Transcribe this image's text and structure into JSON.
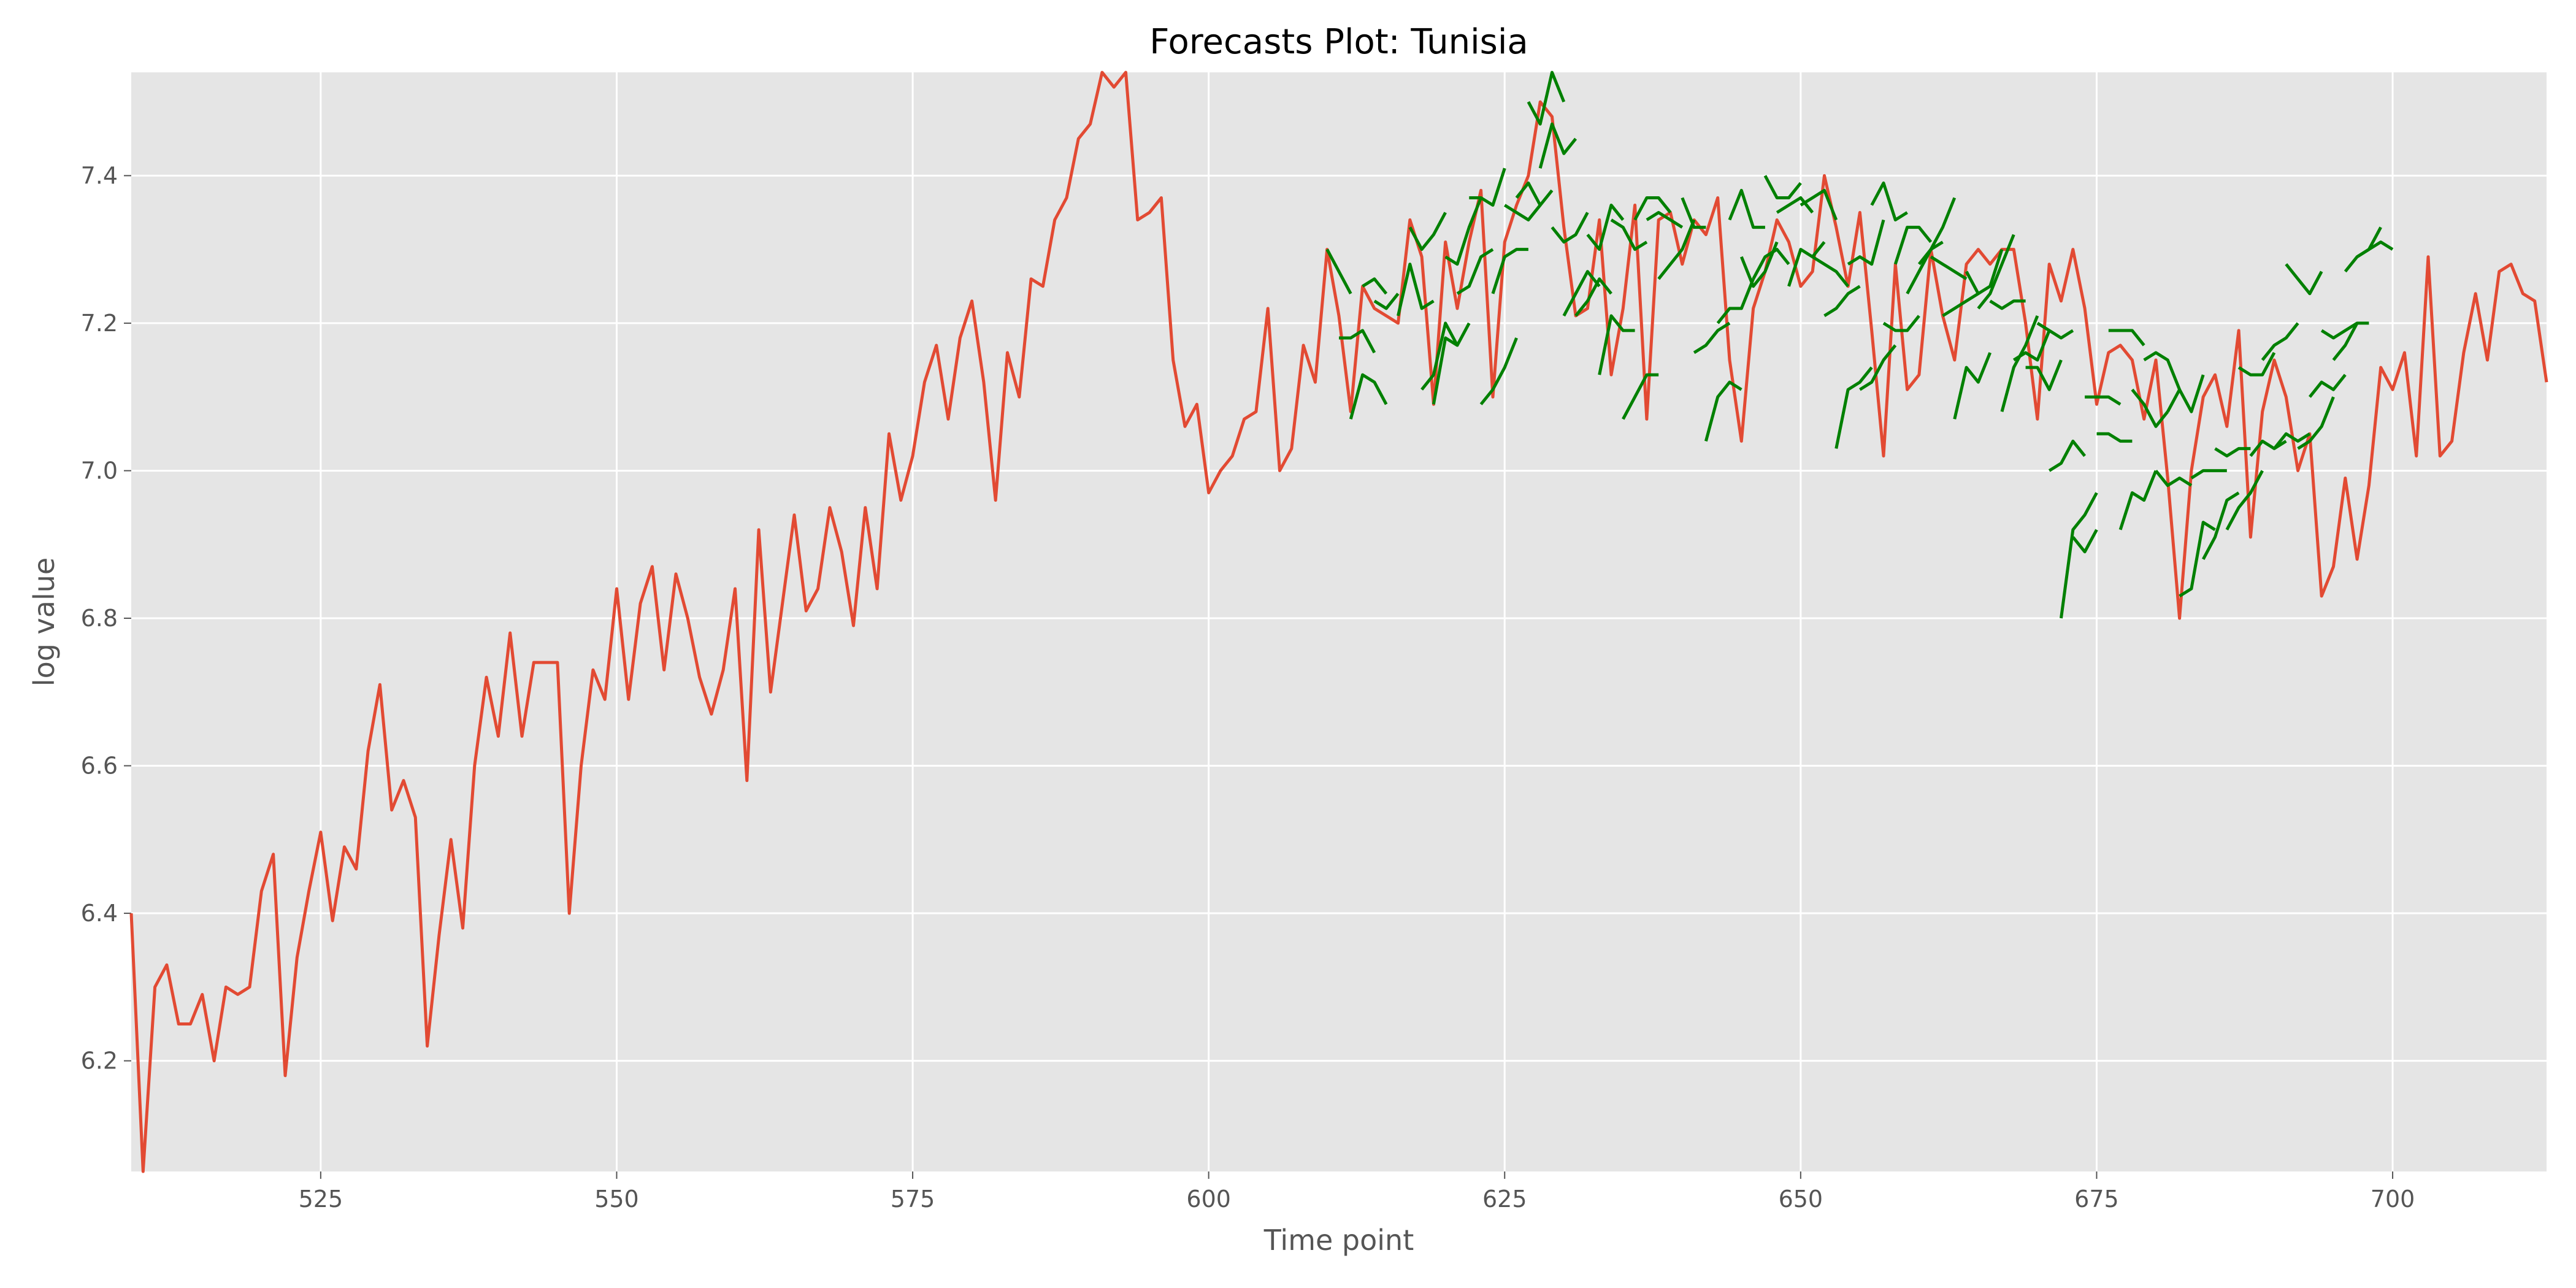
{
  "chart_data": {
    "type": "line",
    "title": "Forecasts Plot: Tunisia",
    "xlabel": "Time point",
    "ylabel": "log value",
    "xlim": [
      509,
      713
    ],
    "ylim": [
      6.05,
      7.54
    ],
    "xticks": [
      525,
      550,
      575,
      600,
      625,
      650,
      675,
      700
    ],
    "yticks": [
      6.2,
      6.4,
      6.6,
      6.8,
      7.0,
      7.2,
      7.4
    ],
    "grid": true,
    "legend": "none",
    "colors": {
      "actual": "#e24a33",
      "forecast": "#008000",
      "panel": "#e5e5e5",
      "grid": "#ffffff"
    },
    "actual": {
      "x_start": 509,
      "values": [
        6.4,
        6.05,
        6.3,
        6.33,
        6.25,
        6.25,
        6.29,
        6.2,
        6.3,
        6.29,
        6.3,
        6.43,
        6.48,
        6.18,
        6.34,
        6.43,
        6.51,
        6.39,
        6.49,
        6.46,
        6.62,
        6.71,
        6.54,
        6.58,
        6.53,
        6.22,
        6.37,
        6.5,
        6.38,
        6.6,
        6.72,
        6.64,
        6.78,
        6.64,
        6.74,
        6.74,
        6.74,
        6.4,
        6.6,
        6.73,
        6.69,
        6.84,
        6.69,
        6.82,
        6.87,
        6.73,
        6.86,
        6.8,
        6.72,
        6.67,
        6.73,
        6.84,
        6.58,
        6.92,
        6.7,
        6.82,
        6.94,
        6.81,
        6.84,
        6.95,
        6.89,
        6.79,
        6.95,
        6.84,
        7.05,
        6.96,
        7.02,
        7.12,
        7.17,
        7.07,
        7.18,
        7.23,
        7.12,
        6.96,
        7.16,
        7.1,
        7.26,
        7.25,
        7.34,
        7.37,
        7.45,
        7.47,
        7.54,
        7.52,
        7.54,
        7.34,
        7.35,
        7.37,
        7.15,
        7.06,
        7.09,
        6.97,
        7.0,
        7.02,
        7.07,
        7.08,
        7.22,
        7.0,
        7.03,
        7.17,
        7.12,
        7.3,
        7.21,
        7.08,
        7.25,
        7.22,
        7.21,
        7.2,
        7.34,
        7.29,
        7.09,
        7.31,
        7.22,
        7.31,
        7.38,
        7.1,
        7.31,
        7.36,
        7.4,
        7.5,
        7.48,
        7.33,
        7.21,
        7.22,
        7.34,
        7.13,
        7.22,
        7.36,
        7.07,
        7.34,
        7.35,
        7.28,
        7.34,
        7.32,
        7.37,
        7.15,
        7.04,
        7.22,
        7.27,
        7.34,
        7.31,
        7.25,
        7.27,
        7.4,
        7.33,
        7.25,
        7.35,
        7.19,
        7.02,
        7.28,
        7.11,
        7.13,
        7.3,
        7.21,
        7.15,
        7.28,
        7.3,
        7.28,
        7.3,
        7.3,
        7.2,
        7.07,
        7.28,
        7.23,
        7.3,
        7.22,
        7.09,
        7.16,
        7.17,
        7.15,
        7.07,
        7.15,
        6.99,
        6.8,
        7.0,
        7.1,
        7.13,
        7.06,
        7.19,
        6.91,
        7.08,
        7.15,
        7.1,
        7.0,
        7.05,
        6.83,
        6.87,
        6.99,
        6.88,
        6.98,
        7.14,
        7.11,
        7.16,
        7.02,
        7.29,
        7.02,
        7.04,
        7.16,
        7.24,
        7.15,
        7.27,
        7.28,
        7.24,
        7.23,
        7.12
      ]
    },
    "forecasts": [
      {
        "x_start": 610,
        "values": [
          7.3,
          7.27,
          7.24
        ]
      },
      {
        "x_start": 611,
        "values": [
          7.18,
          7.18,
          7.19,
          7.16
        ]
      },
      {
        "x_start": 612,
        "values": [
          7.07,
          7.13,
          7.12,
          7.09
        ]
      },
      {
        "x_start": 613,
        "values": [
          7.25,
          7.26,
          7.24
        ]
      },
      {
        "x_start": 614,
        "values": [
          7.23,
          7.22,
          7.24
        ]
      },
      {
        "x_start": 616,
        "values": [
          7.21,
          7.28,
          7.22,
          7.23
        ]
      },
      {
        "x_start": 617,
        "values": [
          7.33,
          7.3,
          7.32,
          7.35
        ]
      },
      {
        "x_start": 618,
        "values": [
          7.11,
          7.13,
          7.2,
          7.17
        ]
      },
      {
        "x_start": 619,
        "values": [
          7.09,
          7.18,
          7.17,
          7.2
        ]
      },
      {
        "x_start": 620,
        "values": [
          7.29,
          7.28,
          7.33,
          7.37
        ]
      },
      {
        "x_start": 621,
        "values": [
          7.24,
          7.25,
          7.29,
          7.3
        ]
      },
      {
        "x_start": 622,
        "values": [
          7.37,
          7.37,
          7.36,
          7.41
        ]
      },
      {
        "x_start": 623,
        "values": [
          7.09,
          7.11,
          7.14,
          7.18
        ]
      },
      {
        "x_start": 624,
        "values": [
          7.24,
          7.29,
          7.3,
          7.3
        ]
      },
      {
        "x_start": 625,
        "values": [
          7.36,
          7.35,
          7.34,
          7.36
        ]
      },
      {
        "x_start": 626,
        "values": [
          7.37,
          7.39,
          7.36,
          7.38
        ]
      },
      {
        "x_start": 627,
        "values": [
          7.5,
          7.47,
          7.54,
          7.5
        ]
      },
      {
        "x_start": 628,
        "values": [
          7.41,
          7.47,
          7.43,
          7.45
        ]
      },
      {
        "x_start": 629,
        "values": [
          7.33,
          7.31,
          7.32,
          7.35
        ]
      },
      {
        "x_start": 630,
        "values": [
          7.21,
          7.24,
          7.27,
          7.25
        ]
      },
      {
        "x_start": 631,
        "values": [
          7.21,
          7.23,
          7.26,
          7.24
        ]
      },
      {
        "x_start": 632,
        "values": [
          7.32,
          7.3,
          7.36,
          7.34
        ]
      },
      {
        "x_start": 633,
        "values": [
          7.13,
          7.21,
          7.19,
          7.19
        ]
      },
      {
        "x_start": 634,
        "values": [
          7.34,
          7.33,
          7.3,
          7.31
        ]
      },
      {
        "x_start": 635,
        "values": [
          7.07,
          7.1,
          7.13,
          7.13
        ]
      },
      {
        "x_start": 636,
        "values": [
          7.34,
          7.37,
          7.37,
          7.35
        ]
      },
      {
        "x_start": 637,
        "values": [
          7.34,
          7.35,
          7.34,
          7.33
        ]
      },
      {
        "x_start": 638,
        "values": [
          7.26,
          7.28,
          7.3,
          7.34
        ]
      },
      {
        "x_start": 640,
        "values": [
          7.37,
          7.33,
          7.33
        ]
      },
      {
        "x_start": 641,
        "values": [
          7.16,
          7.17,
          7.19,
          7.2
        ]
      },
      {
        "x_start": 642,
        "values": [
          7.04,
          7.1,
          7.12,
          7.11
        ]
      },
      {
        "x_start": 643,
        "values": [
          7.2,
          7.22,
          7.22,
          7.26
        ]
      },
      {
        "x_start": 644,
        "values": [
          7.34,
          7.38,
          7.33,
          7.33
        ]
      },
      {
        "x_start": 645,
        "values": [
          7.29,
          7.25,
          7.27,
          7.31
        ]
      },
      {
        "x_start": 646,
        "values": [
          7.26,
          7.29,
          7.3,
          7.28
        ]
      },
      {
        "x_start": 647,
        "values": [
          7.4,
          7.37,
          7.37,
          7.39
        ]
      },
      {
        "x_start": 648,
        "values": [
          7.35,
          7.36,
          7.37,
          7.35
        ]
      },
      {
        "x_start": 649,
        "values": [
          7.25,
          7.3,
          7.29,
          7.31
        ]
      },
      {
        "x_start": 650,
        "values": [
          7.36,
          7.37,
          7.38,
          7.34
        ]
      },
      {
        "x_start": 651,
        "values": [
          7.29,
          7.28,
          7.27,
          7.25
        ]
      },
      {
        "x_start": 652,
        "values": [
          7.21,
          7.22,
          7.24,
          7.25
        ]
      },
      {
        "x_start": 653,
        "values": [
          7.03,
          7.11,
          7.12,
          7.14
        ]
      },
      {
        "x_start": 654,
        "values": [
          7.28,
          7.29,
          7.28,
          7.34
        ]
      },
      {
        "x_start": 655,
        "values": [
          7.11,
          7.12,
          7.15,
          7.17
        ]
      },
      {
        "x_start": 656,
        "values": [
          7.36,
          7.39,
          7.34,
          7.35
        ]
      },
      {
        "x_start": 657,
        "values": [
          7.2,
          7.19,
          7.19,
          7.21
        ]
      },
      {
        "x_start": 658,
        "values": [
          7.28,
          7.33,
          7.33,
          7.31
        ]
      },
      {
        "x_start": 659,
        "values": [
          7.24,
          7.27,
          7.3,
          7.31
        ]
      },
      {
        "x_start": 660,
        "values": [
          7.28,
          7.3,
          7.33,
          7.37
        ]
      },
      {
        "x_start": 661,
        "values": [
          7.29,
          7.28,
          7.27,
          7.26
        ]
      },
      {
        "x_start": 662,
        "values": [
          7.21,
          7.22,
          7.23,
          7.24
        ]
      },
      {
        "x_start": 663,
        "values": [
          7.07,
          7.14,
          7.12,
          7.16
        ]
      },
      {
        "x_start": 664,
        "values": [
          7.27,
          7.24,
          7.25,
          7.3
        ]
      },
      {
        "x_start": 665,
        "values": [
          7.22,
          7.24,
          7.28,
          7.32
        ]
      },
      {
        "x_start": 666,
        "values": [
          7.23,
          7.22,
          7.23,
          7.23
        ]
      },
      {
        "x_start": 667,
        "values": [
          7.08,
          7.14,
          7.17,
          7.21
        ]
      },
      {
        "x_start": 668,
        "values": [
          7.15,
          7.16,
          7.15,
          7.19
        ]
      },
      {
        "x_start": 669,
        "values": [
          7.14,
          7.14,
          7.11,
          7.15
        ]
      },
      {
        "x_start": 670,
        "values": [
          7.2,
          7.19,
          7.18,
          7.19
        ]
      },
      {
        "x_start": 671,
        "values": [
          7.0,
          7.01,
          7.04,
          7.02
        ]
      },
      {
        "x_start": 672,
        "values": [
          6.8,
          6.92,
          6.94,
          6.97
        ]
      },
      {
        "x_start": 673,
        "values": [
          6.91,
          6.89,
          6.92
        ]
      },
      {
        "x_start": 674,
        "values": [
          7.1,
          7.1,
          7.1,
          7.09
        ]
      },
      {
        "x_start": 675,
        "values": [
          7.05,
          7.05,
          7.04,
          7.04
        ]
      },
      {
        "x_start": 676,
        "values": [
          7.19,
          7.19,
          7.19,
          7.17
        ]
      },
      {
        "x_start": 677,
        "values": [
          6.92,
          6.97,
          6.96,
          7.0
        ]
      },
      {
        "x_start": 678,
        "values": [
          7.11,
          7.09,
          7.06,
          7.08
        ]
      },
      {
        "x_start": 679,
        "values": [
          7.15,
          7.16,
          7.15,
          7.11
        ]
      },
      {
        "x_start": 680,
        "values": [
          7.0,
          6.98,
          6.99,
          6.98
        ]
      },
      {
        "x_start": 681,
        "values": [
          7.08,
          7.11,
          7.08,
          7.13
        ]
      },
      {
        "x_start": 682,
        "values": [
          6.83,
          6.84,
          6.93,
          6.92
        ]
      },
      {
        "x_start": 683,
        "values": [
          6.99,
          7.0,
          7.0,
          7.0
        ]
      },
      {
        "x_start": 684,
        "values": [
          6.88,
          6.91,
          6.96,
          6.97
        ]
      },
      {
        "x_start": 685,
        "values": [
          7.03,
          7.02,
          7.03,
          7.03
        ]
      },
      {
        "x_start": 686,
        "values": [
          6.92,
          6.95,
          6.97,
          7.0
        ]
      },
      {
        "x_start": 687,
        "values": [
          7.14,
          7.13,
          7.13,
          7.16
        ]
      },
      {
        "x_start": 688,
        "values": [
          7.02,
          7.04,
          7.03,
          7.04
        ]
      },
      {
        "x_start": 689,
        "values": [
          7.15,
          7.17,
          7.18,
          7.2
        ]
      },
      {
        "x_start": 690,
        "values": [
          7.03,
          7.05,
          7.04,
          7.05
        ]
      },
      {
        "x_start": 691,
        "values": [
          7.28,
          7.26,
          7.24,
          7.27
        ]
      },
      {
        "x_start": 692,
        "values": [
          7.03,
          7.04,
          7.06,
          7.1
        ]
      },
      {
        "x_start": 693,
        "values": [
          7.1,
          7.12,
          7.11,
          7.13
        ]
      },
      {
        "x_start": 694,
        "values": [
          7.19,
          7.18,
          7.19,
          7.2
        ]
      },
      {
        "x_start": 695,
        "values": [
          7.15,
          7.17,
          7.2,
          7.2
        ]
      },
      {
        "x_start": 696,
        "values": [
          7.27,
          7.29,
          7.3,
          7.33
        ]
      },
      {
        "x_start": 697,
        "values": [
          7.29,
          7.3,
          7.31,
          7.3
        ]
      }
    ]
  }
}
